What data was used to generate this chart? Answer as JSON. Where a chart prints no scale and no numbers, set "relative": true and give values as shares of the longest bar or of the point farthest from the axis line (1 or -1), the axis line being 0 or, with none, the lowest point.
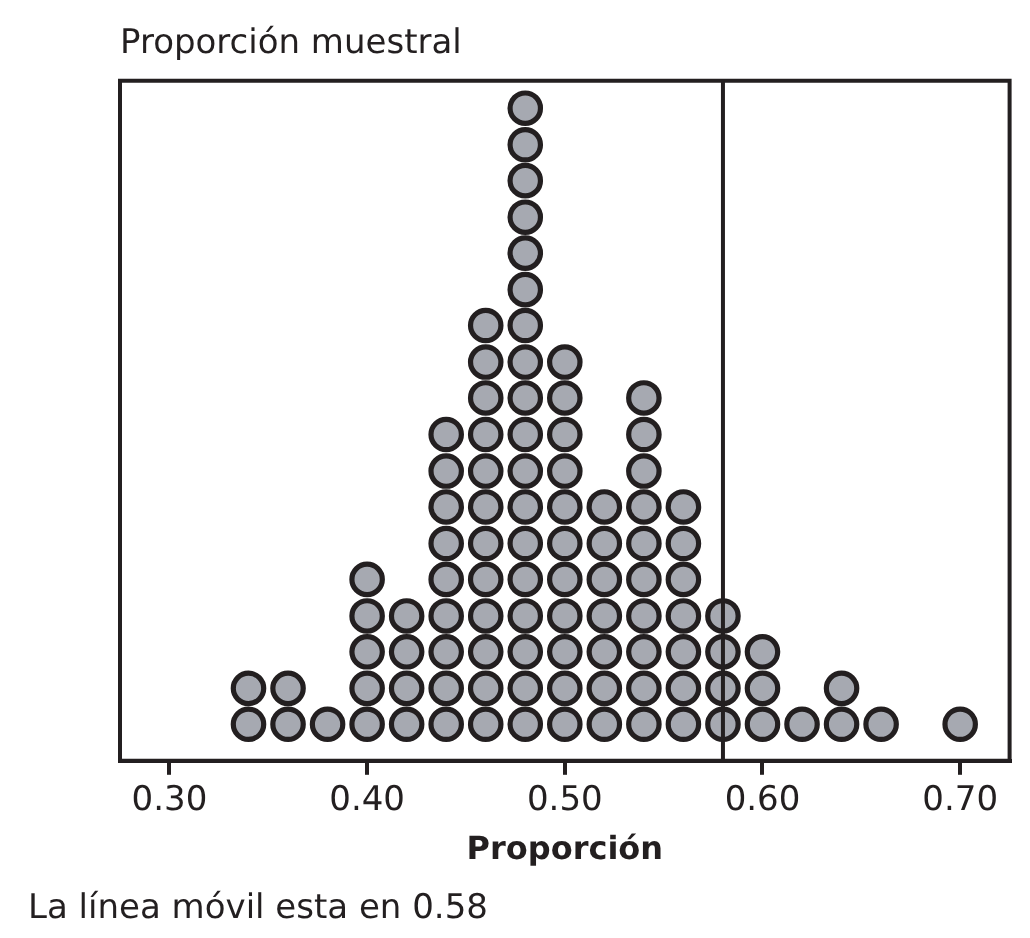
{
  "chart_data": {
    "type": "scatter",
    "title": "Proporción muestral",
    "xlabel": "Proporción",
    "annotations": [
      "La línea móvil esta en 0.58"
    ],
    "relative": true,
    "marker": "circle",
    "grid": false,
    "legend": false,
    "xlim": [
      0.275,
      0.725
    ],
    "xticks": [
      {
        "value": 0.3,
        "label": "0.30"
      },
      {
        "value": 0.4,
        "label": "0.40"
      },
      {
        "value": 0.5,
        "label": "0.50"
      },
      {
        "value": 0.6,
        "label": "0.60"
      },
      {
        "value": 0.7,
        "label": "0.70"
      }
    ],
    "ref_lines": [
      {
        "axis": "x",
        "value": 0.58,
        "color": "#231f20"
      }
    ],
    "series": [
      {
        "color": "#a6a9b1",
        "x": [
          0.34,
          0.34,
          0.36,
          0.36,
          0.38,
          0.4,
          0.4,
          0.4,
          0.4,
          0.4,
          0.42,
          0.42,
          0.42,
          0.42,
          0.44,
          0.44,
          0.44,
          0.44,
          0.44,
          0.44,
          0.44,
          0.44,
          0.44,
          0.46,
          0.46,
          0.46,
          0.46,
          0.46,
          0.46,
          0.46,
          0.46,
          0.46,
          0.46,
          0.46,
          0.46,
          0.48,
          0.48,
          0.48,
          0.48,
          0.48,
          0.48,
          0.48,
          0.48,
          0.48,
          0.48,
          0.48,
          0.48,
          0.48,
          0.48,
          0.48,
          0.48,
          0.48,
          0.48,
          0.5,
          0.5,
          0.5,
          0.5,
          0.5,
          0.5,
          0.5,
          0.5,
          0.5,
          0.5,
          0.5,
          0.52,
          0.52,
          0.52,
          0.52,
          0.52,
          0.52,
          0.52,
          0.54,
          0.54,
          0.54,
          0.54,
          0.54,
          0.54,
          0.54,
          0.54,
          0.54,
          0.54,
          0.56,
          0.56,
          0.56,
          0.56,
          0.56,
          0.56,
          0.56,
          0.58,
          0.58,
          0.58,
          0.58,
          0.6,
          0.6,
          0.6,
          0.62,
          0.64,
          0.64,
          0.66,
          0.7
        ],
        "values": [
          0.056,
          0.111,
          0.056,
          0.111,
          0.056,
          0.056,
          0.111,
          0.167,
          0.222,
          0.278,
          0.056,
          0.111,
          0.167,
          0.222,
          0.056,
          0.111,
          0.167,
          0.222,
          0.278,
          0.333,
          0.389,
          0.444,
          0.5,
          0.056,
          0.111,
          0.167,
          0.222,
          0.278,
          0.333,
          0.389,
          0.444,
          0.5,
          0.556,
          0.611,
          0.667,
          0.056,
          0.111,
          0.167,
          0.222,
          0.278,
          0.333,
          0.389,
          0.444,
          0.5,
          0.556,
          0.611,
          0.667,
          0.722,
          0.778,
          0.833,
          0.889,
          0.944,
          1,
          0.056,
          0.111,
          0.167,
          0.222,
          0.278,
          0.333,
          0.389,
          0.444,
          0.5,
          0.556,
          0.611,
          0.056,
          0.111,
          0.167,
          0.222,
          0.278,
          0.333,
          0.389,
          0.056,
          0.111,
          0.167,
          0.222,
          0.278,
          0.333,
          0.389,
          0.444,
          0.5,
          0.556,
          0.056,
          0.111,
          0.167,
          0.222,
          0.278,
          0.333,
          0.389,
          0.056,
          0.111,
          0.167,
          0.222,
          0.056,
          0.111,
          0.167,
          0.056,
          0.056,
          0.111,
          0.056,
          0.056
        ]
      }
    ]
  }
}
